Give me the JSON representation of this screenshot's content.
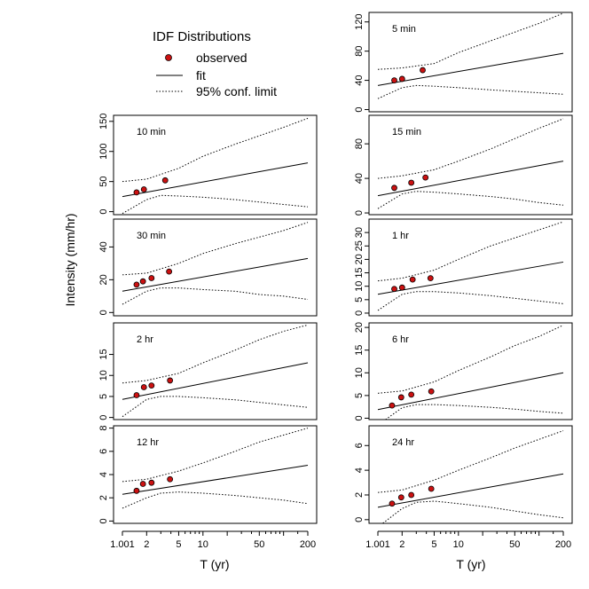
{
  "figure": {
    "legend": {
      "title": "IDF Distributions",
      "observed_label": "observed",
      "fit_label": "fit",
      "conf_label": "95% conf. limit"
    },
    "ylabel": "Intensity (mm/hr)",
    "xlabel": "T (yr)"
  },
  "colors": {
    "observed_fill": "#cc1111",
    "line": "#000000",
    "background": "#ffffff"
  },
  "chart_data": [
    {
      "type": "scatter",
      "title": "5 min",
      "x_ticks": [
        1.001,
        2,
        5,
        10,
        20,
        50,
        100,
        200
      ],
      "x_tick_labels": [
        "1.001",
        "2",
        "5",
        "10",
        "",
        "50",
        "",
        "200"
      ],
      "xlabel": "T (yr)",
      "y_ticks": [
        0,
        40,
        80,
        120
      ],
      "ylim": [
        -3,
        133
      ],
      "observed": {
        "x": [
          1.6,
          2.0,
          3.6
        ],
        "y": [
          40,
          42,
          54
        ]
      },
      "fit": {
        "x": [
          1.001,
          200
        ],
        "y": [
          33,
          77
        ]
      },
      "upper_95": {
        "x": [
          1.001,
          2.0,
          5.0,
          10,
          25,
          50,
          100,
          200
        ],
        "y": [
          55,
          57,
          63,
          78,
          94,
          106,
          118,
          132
        ]
      },
      "lower_95": {
        "x": [
          1.001,
          2.0,
          3.0,
          5.0,
          10,
          25,
          50,
          100,
          200
        ],
        "y": [
          15,
          30,
          33,
          32,
          30,
          27,
          25,
          23,
          21
        ]
      }
    },
    {
      "type": "scatter",
      "title": "10 min",
      "x_ticks": [
        1.001,
        2,
        5,
        10,
        20,
        50,
        100,
        200
      ],
      "x_tick_labels": [
        "1.001",
        "2",
        "5",
        "10",
        "",
        "50",
        "",
        "200"
      ],
      "xlabel": "T (yr)",
      "y_ticks": [
        0,
        50,
        100,
        150
      ],
      "ylim": [
        -5,
        160
      ],
      "observed": {
        "x": [
          1.5,
          1.85,
          3.4
        ],
        "y": [
          32,
          37,
          52
        ]
      },
      "fit": {
        "x": [
          1.001,
          200
        ],
        "y": [
          25,
          81
        ]
      },
      "upper_95": {
        "x": [
          1.001,
          2.0,
          5.0,
          10,
          25,
          50,
          100,
          200
        ],
        "y": [
          50,
          54,
          72,
          92,
          112,
          126,
          140,
          155
        ]
      },
      "lower_95": {
        "x": [
          1.001,
          2.0,
          3.0,
          5.0,
          10,
          25,
          50,
          100,
          200
        ],
        "y": [
          -3,
          20,
          27,
          26,
          24,
          20,
          16,
          12,
          8
        ]
      }
    },
    {
      "type": "scatter",
      "title": "15 min",
      "x_ticks": [
        1.001,
        2,
        5,
        10,
        20,
        50,
        100,
        200
      ],
      "x_tick_labels": [
        "1.001",
        "2",
        "5",
        "10",
        "",
        "50",
        "",
        "200"
      ],
      "xlabel": "T (yr)",
      "y_ticks": [
        0,
        40,
        80
      ],
      "ylim": [
        -2,
        113
      ],
      "observed": {
        "x": [
          1.6,
          2.6,
          3.9
        ],
        "y": [
          29,
          35,
          41
        ]
      },
      "fit": {
        "x": [
          1.001,
          200
        ],
        "y": [
          20,
          60
        ]
      },
      "upper_95": {
        "x": [
          1.001,
          2.0,
          5.0,
          10,
          25,
          50,
          100,
          200
        ],
        "y": [
          40,
          43,
          50,
          60,
          74,
          86,
          98,
          109
        ]
      },
      "lower_95": {
        "x": [
          1.001,
          2.0,
          3.0,
          5.0,
          10,
          25,
          50,
          100,
          200
        ],
        "y": [
          5,
          22,
          25,
          24,
          22,
          19,
          16,
          12,
          9
        ]
      }
    },
    {
      "type": "scatter",
      "title": "30 min",
      "x_ticks": [
        1.001,
        2,
        5,
        10,
        20,
        50,
        100,
        200
      ],
      "x_tick_labels": [
        "1.001",
        "2",
        "5",
        "10",
        "",
        "50",
        "",
        "200"
      ],
      "xlabel": "T (yr)",
      "y_ticks": [
        0,
        20,
        40
      ],
      "ylim": [
        -2,
        57
      ],
      "observed": {
        "x": [
          1.5,
          1.8,
          2.3,
          3.8
        ],
        "y": [
          17,
          19,
          21,
          25
        ]
      },
      "fit": {
        "x": [
          1.001,
          200
        ],
        "y": [
          13,
          33
        ]
      },
      "upper_95": {
        "x": [
          1.001,
          2.0,
          5.0,
          10,
          25,
          50,
          100,
          200
        ],
        "y": [
          23,
          24,
          30,
          36,
          42,
          46,
          50,
          55
        ]
      },
      "lower_95": {
        "x": [
          1.001,
          2.0,
          3.0,
          5.0,
          10,
          25,
          50,
          100,
          200
        ],
        "y": [
          5,
          13,
          15,
          15,
          14,
          13,
          11,
          10,
          8
        ]
      }
    },
    {
      "type": "scatter",
      "title": "1 hr",
      "x_ticks": [
        1.001,
        2,
        5,
        10,
        20,
        50,
        100,
        200
      ],
      "x_tick_labels": [
        "1.001",
        "2",
        "5",
        "10",
        "",
        "50",
        "",
        "200"
      ],
      "xlabel": "T (yr)",
      "y_ticks": [
        0,
        5,
        10,
        15,
        20,
        25,
        30
      ],
      "ylim": [
        -1,
        35
      ],
      "observed": {
        "x": [
          1.6,
          2.0,
          2.7,
          4.5
        ],
        "y": [
          9,
          9.5,
          12.5,
          13
        ]
      },
      "fit": {
        "x": [
          1.001,
          200
        ],
        "y": [
          7,
          19
        ]
      },
      "upper_95": {
        "x": [
          1.001,
          2.0,
          5.0,
          10,
          25,
          50,
          100,
          200
        ],
        "y": [
          12,
          13,
          16,
          20,
          25,
          28,
          31,
          34
        ]
      },
      "lower_95": {
        "x": [
          1.001,
          2.0,
          3.0,
          5.0,
          10,
          25,
          50,
          100,
          200
        ],
        "y": [
          1,
          7,
          8,
          8,
          7.5,
          6.5,
          5.5,
          4.5,
          3.5
        ]
      }
    },
    {
      "type": "scatter",
      "title": "2 hr",
      "x_ticks": [
        1.001,
        2,
        5,
        10,
        20,
        50,
        100,
        200
      ],
      "x_tick_labels": [
        "1.001",
        "2",
        "5",
        "10",
        "",
        "50",
        "",
        "200"
      ],
      "xlabel": "T (yr)",
      "y_ticks": [
        0,
        5,
        10,
        15
      ],
      "ylim": [
        -0.5,
        22.5
      ],
      "observed": {
        "x": [
          1.5,
          1.85,
          2.3,
          3.9
        ],
        "y": [
          5.3,
          7.2,
          7.6,
          8.8
        ]
      },
      "fit": {
        "x": [
          1.001,
          200
        ],
        "y": [
          4.3,
          13
        ]
      },
      "upper_95": {
        "x": [
          1.001,
          2.0,
          5.0,
          10,
          25,
          50,
          100,
          200
        ],
        "y": [
          8.2,
          8.8,
          10.5,
          13,
          16,
          18.5,
          20.5,
          22
        ]
      },
      "lower_95": {
        "x": [
          1.001,
          2.0,
          3.0,
          5.0,
          10,
          25,
          50,
          100,
          200
        ],
        "y": [
          0.2,
          4.3,
          5.0,
          5.0,
          4.7,
          4.2,
          3.6,
          3.0,
          2.4
        ]
      }
    },
    {
      "type": "scatter",
      "title": "6 hr",
      "x_ticks": [
        1.001,
        2,
        5,
        10,
        20,
        50,
        100,
        200
      ],
      "x_tick_labels": [
        "1.001",
        "2",
        "5",
        "10",
        "",
        "50",
        "",
        "200"
      ],
      "xlabel": "T (yr)",
      "y_ticks": [
        0,
        5,
        10,
        15,
        20
      ],
      "ylim": [
        -0.3,
        21
      ],
      "observed": {
        "x": [
          1.5,
          1.95,
          2.6,
          4.6
        ],
        "y": [
          2.8,
          4.6,
          5.2,
          5.9
        ]
      },
      "fit": {
        "x": [
          1.001,
          200
        ],
        "y": [
          1.9,
          10
        ]
      },
      "upper_95": {
        "x": [
          1.001,
          2.0,
          5.0,
          10,
          25,
          50,
          100,
          200
        ],
        "y": [
          5.5,
          6,
          8,
          10.5,
          13.5,
          16,
          18,
          20.5
        ]
      },
      "lower_95": {
        "x": [
          1.001,
          2.0,
          3.0,
          5.0,
          10,
          25,
          50,
          100,
          200
        ],
        "y": [
          -1.5,
          2.3,
          3.0,
          3.0,
          2.8,
          2.4,
          2.0,
          1.5,
          1.1
        ]
      }
    },
    {
      "type": "scatter",
      "title": "12 hr",
      "x_ticks": [
        1.001,
        2,
        5,
        10,
        20,
        50,
        100,
        200
      ],
      "x_tick_labels": [
        "1.001",
        "2",
        "5",
        "10",
        "",
        "50",
        "",
        "200"
      ],
      "xlabel": "T (yr)",
      "y_ticks": [
        0,
        2,
        4,
        6,
        8
      ],
      "ylim": [
        -0.2,
        8.2
      ],
      "observed": {
        "x": [
          1.5,
          1.8,
          2.3,
          3.9
        ],
        "y": [
          2.6,
          3.2,
          3.3,
          3.6
        ]
      },
      "fit": {
        "x": [
          1.001,
          200
        ],
        "y": [
          2.3,
          4.8
        ]
      },
      "upper_95": {
        "x": [
          1.001,
          2.0,
          5.0,
          10,
          25,
          50,
          100,
          200
        ],
        "y": [
          3.4,
          3.6,
          4.3,
          5.0,
          6.0,
          6.8,
          7.4,
          8.0
        ]
      },
      "lower_95": {
        "x": [
          1.001,
          2.0,
          3.0,
          5.0,
          10,
          25,
          50,
          100,
          200
        ],
        "y": [
          1.1,
          2.0,
          2.4,
          2.5,
          2.4,
          2.2,
          2.0,
          1.8,
          1.5
        ]
      }
    },
    {
      "type": "scatter",
      "title": "24 hr",
      "x_ticks": [
        1.001,
        2,
        5,
        10,
        20,
        50,
        100,
        200
      ],
      "x_tick_labels": [
        "1.001",
        "2",
        "5",
        "10",
        "",
        "50",
        "",
        "200"
      ],
      "xlabel": "T (yr)",
      "y_ticks": [
        0,
        2,
        4,
        6
      ],
      "ylim": [
        -0.3,
        7.6
      ],
      "observed": {
        "x": [
          1.5,
          1.95,
          2.6,
          4.6
        ],
        "y": [
          1.3,
          1.8,
          2.0,
          2.5
        ]
      },
      "fit": {
        "x": [
          1.001,
          200
        ],
        "y": [
          1.0,
          3.7
        ]
      },
      "upper_95": {
        "x": [
          1.001,
          2.0,
          5.0,
          10,
          25,
          50,
          100,
          200
        ],
        "y": [
          2.2,
          2.4,
          3.2,
          4.0,
          5.0,
          5.8,
          6.5,
          7.2
        ]
      },
      "lower_95": {
        "x": [
          1.001,
          2.0,
          3.0,
          5.0,
          10,
          25,
          50,
          100,
          200
        ],
        "y": [
          -0.6,
          0.9,
          1.4,
          1.5,
          1.3,
          1.0,
          0.7,
          0.4,
          0.15
        ]
      }
    }
  ]
}
